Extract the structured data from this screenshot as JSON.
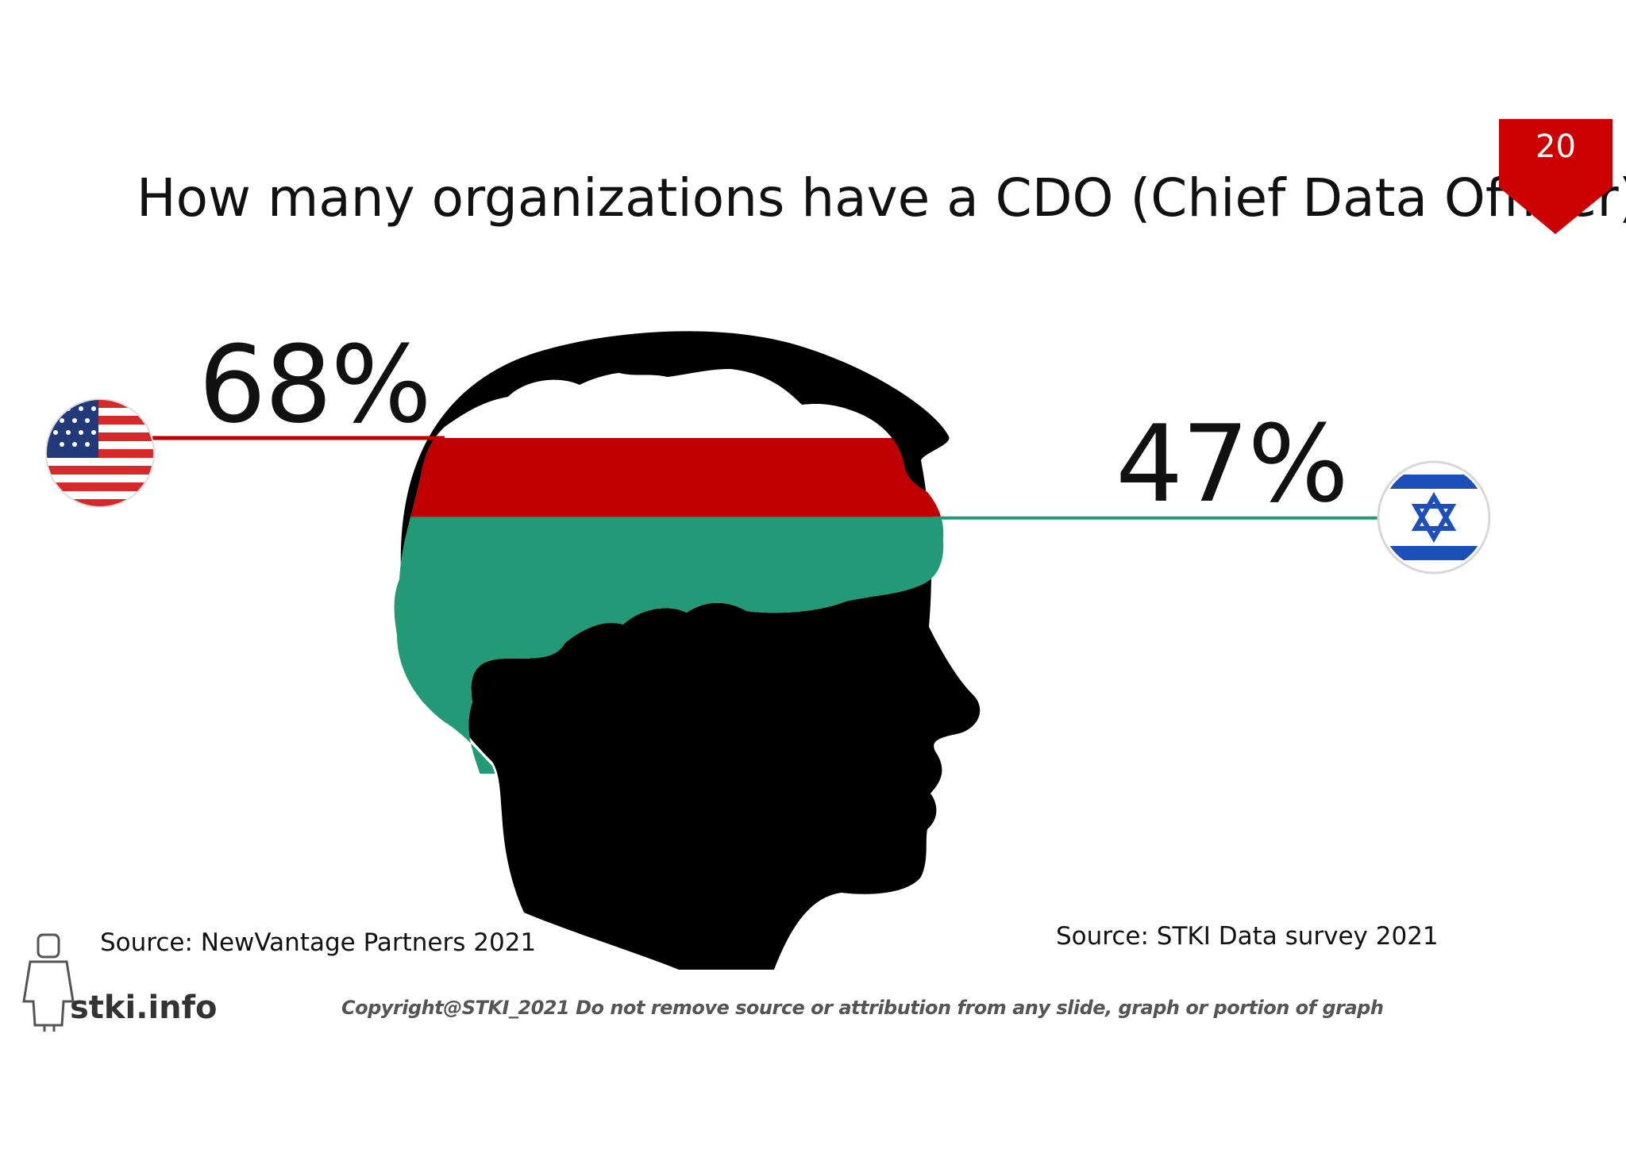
{
  "slide": {
    "title": "How many organizations have a CDO (Chief Data Officer)?",
    "page_number": "20",
    "badge_color": "#cc0000"
  },
  "chart_data": {
    "type": "bar",
    "categories": [
      "United States",
      "Israel"
    ],
    "values": [
      68,
      47
    ],
    "value_labels": [
      "68%",
      "47%"
    ],
    "ylim": [
      0,
      100
    ],
    "colors": [
      "#c00000",
      "#229a78"
    ],
    "icons": [
      "us-flag-icon",
      "israel-flag-icon"
    ]
  },
  "sources": {
    "us": "Source: NewVantage Partners 2021",
    "il": "Source: STKI Data survey 2021"
  },
  "footer": {
    "copyright": "Copyright@STKI_2021 Do not remove source or attribution from any slide, graph or portion of graph",
    "brand": "stki.info"
  }
}
